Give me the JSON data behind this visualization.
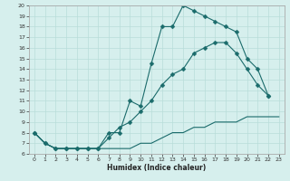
{
  "xlabel": "Humidex (Indice chaleur)",
  "xlim": [
    -0.5,
    23.5
  ],
  "ylim": [
    6,
    20
  ],
  "xticks": [
    0,
    1,
    2,
    3,
    4,
    5,
    6,
    7,
    8,
    9,
    10,
    11,
    12,
    13,
    14,
    15,
    16,
    17,
    18,
    19,
    20,
    21,
    22,
    23
  ],
  "yticks": [
    6,
    7,
    8,
    9,
    10,
    11,
    12,
    13,
    14,
    15,
    16,
    17,
    18,
    19,
    20
  ],
  "bg_color": "#d6efed",
  "grid_color": "#b8ddd9",
  "line_color": "#1a6b6b",
  "line1_x": [
    0,
    1,
    2,
    3,
    4,
    5,
    6,
    7,
    8,
    9,
    10,
    11,
    12,
    13,
    14,
    15,
    16,
    17,
    18,
    19,
    20,
    21,
    22
  ],
  "line1_y": [
    8,
    7,
    6.5,
    6.5,
    6.5,
    6.5,
    6.5,
    8,
    8,
    11,
    10.5,
    14.5,
    18,
    18,
    20,
    19.5,
    19,
    18.5,
    18,
    17.5,
    15,
    14,
    11.5
  ],
  "line2_x": [
    0,
    1,
    2,
    3,
    4,
    5,
    6,
    7,
    8,
    9,
    10,
    11,
    12,
    13,
    14,
    15,
    16,
    17,
    18,
    19,
    20,
    21,
    22
  ],
  "line2_y": [
    8,
    7,
    6.5,
    6.5,
    6.5,
    6.5,
    6.5,
    7.5,
    8.5,
    9.0,
    10.0,
    11.0,
    12.5,
    13.5,
    14.0,
    15.5,
    16.0,
    16.5,
    16.5,
    15.5,
    14.0,
    12.5,
    11.5
  ],
  "line3_x": [
    0,
    1,
    2,
    3,
    4,
    5,
    6,
    7,
    8,
    9,
    10,
    11,
    12,
    13,
    14,
    15,
    16,
    17,
    18,
    19,
    20,
    21,
    22,
    23
  ],
  "line3_y": [
    8,
    7,
    6.5,
    6.5,
    6.5,
    6.5,
    6.5,
    6.5,
    6.5,
    6.5,
    7.0,
    7.0,
    7.5,
    8.0,
    8.0,
    8.5,
    8.5,
    9.0,
    9.0,
    9.0,
    9.5,
    9.5,
    9.5,
    9.5
  ]
}
